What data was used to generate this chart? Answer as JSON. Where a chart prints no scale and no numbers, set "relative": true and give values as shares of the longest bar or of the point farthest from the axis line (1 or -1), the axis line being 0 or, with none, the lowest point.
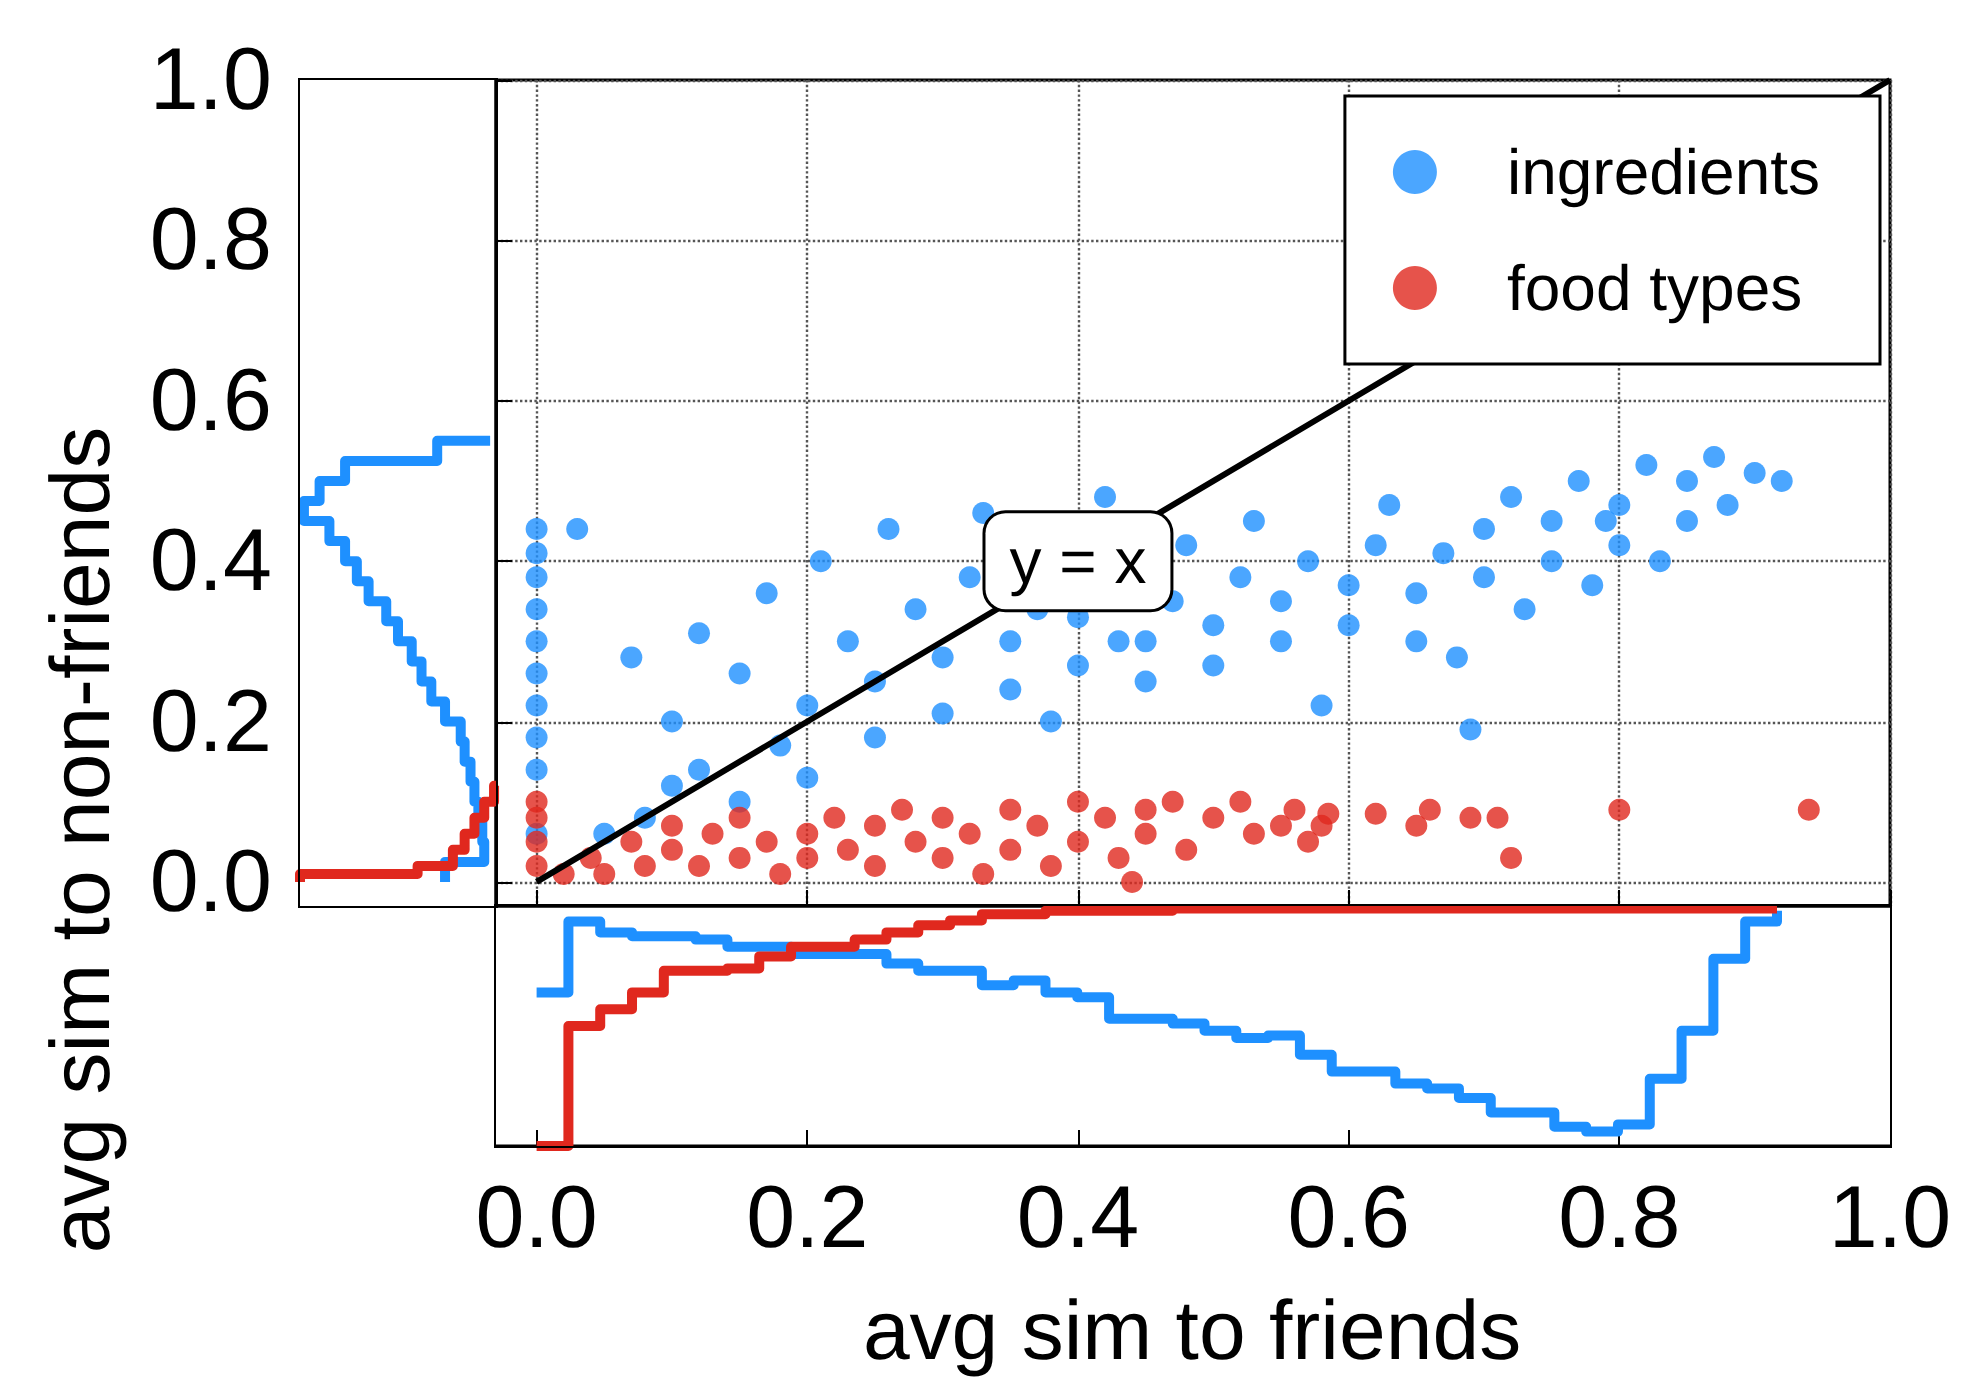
{
  "chart_data": [
    {
      "type": "scatter",
      "xlim": [
        -0.03,
        1.0
      ],
      "ylim": [
        -0.03,
        1.0
      ],
      "xticks": [
        0,
        0.2,
        0.4,
        0.6,
        0.8,
        1
      ],
      "yticks": [
        0,
        0.2,
        0.4,
        0.6,
        0.8,
        1
      ],
      "tick_labels": false,
      "grid": true,
      "legend": "top right",
      "marker": "circle",
      "series": [
        {
          "name": "ingredients",
          "color": "#1e90ff",
          "x": [
            0,
            0,
            0,
            0,
            0,
            0,
            0,
            0,
            0,
            0,
            0.03,
            0.05,
            0.08,
            0.07,
            0.1,
            0.1,
            0.12,
            0.12,
            0.15,
            0.15,
            0.17,
            0.18,
            0.2,
            0.2,
            0.21,
            0.23,
            0.25,
            0.25,
            0.26,
            0.28,
            0.3,
            0.3,
            0.32,
            0.33,
            0.35,
            0.35,
            0.37,
            0.38,
            0.4,
            0.4,
            0.42,
            0.43,
            0.45,
            0.45,
            0.47,
            0.48,
            0.5,
            0.5,
            0.52,
            0.53,
            0.55,
            0.55,
            0.57,
            0.58,
            0.6,
            0.6,
            0.62,
            0.63,
            0.65,
            0.65,
            0.67,
            0.68,
            0.69,
            0.7,
            0.7,
            0.72,
            0.73,
            0.75,
            0.75,
            0.77,
            0.78,
            0.79,
            0.8,
            0.8,
            0.82,
            0.83,
            0.85,
            0.85,
            0.87,
            0.88,
            0.9,
            0.92
          ],
          "values": [
            0.06,
            0.14,
            0.18,
            0.22,
            0.26,
            0.3,
            0.34,
            0.38,
            0.41,
            0.44,
            0.44,
            0.06,
            0.08,
            0.28,
            0.12,
            0.2,
            0.31,
            0.14,
            0.1,
            0.26,
            0.36,
            0.17,
            0.22,
            0.13,
            0.4,
            0.3,
            0.18,
            0.25,
            0.44,
            0.34,
            0.21,
            0.28,
            0.38,
            0.46,
            0.24,
            0.3,
            0.34,
            0.2,
            0.27,
            0.33,
            0.48,
            0.3,
            0.25,
            0.3,
            0.35,
            0.42,
            0.27,
            0.32,
            0.38,
            0.45,
            0.3,
            0.35,
            0.4,
            0.22,
            0.32,
            0.37,
            0.42,
            0.47,
            0.3,
            0.36,
            0.41,
            0.28,
            0.19,
            0.38,
            0.44,
            0.48,
            0.34,
            0.4,
            0.45,
            0.5,
            0.37,
            0.45,
            0.42,
            0.47,
            0.52,
            0.4,
            0.45,
            0.5,
            0.53,
            0.47,
            0.51,
            0.5
          ]
        },
        {
          "name": "food types",
          "color": "#e0281e",
          "x": [
            0,
            0,
            0,
            0,
            0.02,
            0.04,
            0.05,
            0.07,
            0.08,
            0.1,
            0.1,
            0.12,
            0.13,
            0.15,
            0.15,
            0.17,
            0.18,
            0.2,
            0.2,
            0.22,
            0.23,
            0.25,
            0.25,
            0.27,
            0.28,
            0.3,
            0.3,
            0.32,
            0.33,
            0.35,
            0.35,
            0.37,
            0.38,
            0.4,
            0.4,
            0.42,
            0.43,
            0.44,
            0.45,
            0.45,
            0.47,
            0.48,
            0.5,
            0.52,
            0.53,
            0.55,
            0.56,
            0.57,
            0.58,
            0.585,
            0.62,
            0.65,
            0.66,
            0.69,
            0.71,
            0.72,
            0.8,
            0.94
          ],
          "values": [
            0.02,
            0.05,
            0.08,
            0.1,
            0.01,
            0.03,
            0.01,
            0.05,
            0.02,
            0.04,
            0.07,
            0.02,
            0.06,
            0.03,
            0.08,
            0.05,
            0.01,
            0.06,
            0.03,
            0.08,
            0.04,
            0.02,
            0.07,
            0.09,
            0.05,
            0.03,
            0.08,
            0.06,
            0.01,
            0.09,
            0.04,
            0.07,
            0.02,
            0.1,
            0.05,
            0.08,
            0.03,
            0.0,
            0.09,
            0.06,
            0.1,
            0.04,
            0.08,
            0.1,
            0.06,
            0.07,
            0.09,
            0.05,
            0.07,
            0.085,
            0.085,
            0.07,
            0.09,
            0.08,
            0.08,
            0.03,
            0.09,
            0.09
          ]
        },
        {
          "type": "line",
          "color": "#000000",
          "marker": "none",
          "x": [
            0,
            1
          ],
          "values": [
            0,
            1
          ]
        }
      ],
      "annotations": [
        {
          "text": "y = x",
          "x": 0.4,
          "y": 0.4
        }
      ]
    },
    {
      "type": "step",
      "relative": true,
      "xlabel": "avg sim to friends",
      "xlim": [
        -0.03,
        1.0
      ],
      "tick_labels": "x",
      "xticks": [
        {
          "value": 0,
          "label": "0.0"
        },
        {
          "value": 0.2,
          "label": "0.2"
        },
        {
          "value": 0.4,
          "label": "0.4"
        },
        {
          "value": 0.6,
          "label": "0.6"
        },
        {
          "value": 0.8,
          "label": "0.8"
        },
        {
          "value": 1,
          "label": "1.0"
        }
      ],
      "x": [
        0,
        0.0235,
        0.047,
        0.0705,
        0.094,
        0.1175,
        0.141,
        0.1645,
        0.188,
        0.2115,
        0.235,
        0.2585,
        0.282,
        0.3055,
        0.329,
        0.3525,
        0.376,
        0.3995,
        0.423,
        0.4465,
        0.47,
        0.4935,
        0.517,
        0.5405,
        0.564,
        0.5875,
        0.611,
        0.6345,
        0.658,
        0.6815,
        0.705,
        0.7285,
        0.752,
        0.7755,
        0.799,
        0.8225,
        0.846,
        0.8695,
        0.893,
        0.9165
      ],
      "series": [
        {
          "color": "#1e90ff",
          "values": [
            -0.36,
            -0.065,
            -0.11,
            -0.126,
            -0.126,
            -0.14,
            -0.17,
            -0.17,
            -0.2,
            -0.2,
            -0.2,
            -0.24,
            -0.27,
            -0.27,
            -0.33,
            -0.31,
            -0.36,
            -0.38,
            -0.47,
            -0.47,
            -0.49,
            -0.52,
            -0.55,
            -0.54,
            -0.62,
            -0.69,
            -0.69,
            -0.74,
            -0.76,
            -0.8,
            -0.86,
            -0.86,
            -0.92,
            -0.94,
            -0.91,
            -0.72,
            -0.52,
            -0.22,
            -0.065,
            -0.02
          ]
        },
        {
          "color": "#e0281e",
          "values": [
            -1.0,
            -0.5,
            -0.43,
            -0.36,
            -0.27,
            -0.27,
            -0.26,
            -0.21,
            -0.17,
            -0.17,
            -0.14,
            -0.11,
            -0.08,
            -0.06,
            -0.034,
            -0.034,
            -0.02,
            -0.02,
            -0.02,
            -0.02,
            -0.01,
            -0.01,
            -0.01,
            -0.01,
            -0.01,
            -0.01,
            -0.01,
            -0.01,
            -0.01,
            -0.01,
            -0.01,
            -0.01,
            -0.01,
            -0.01,
            -0.01,
            -0.01,
            -0.01,
            -0.01,
            -0.01,
            -0.01
          ]
        }
      ]
    },
    {
      "type": "step",
      "orientation": "horizontal",
      "relative": true,
      "ylabel": "avg sim to non-friends",
      "ylim": [
        -0.03,
        1.0
      ],
      "tick_labels": "y",
      "yticks": [
        {
          "value": 0,
          "label": "0.0"
        },
        {
          "value": 0.2,
          "label": "0.2"
        },
        {
          "value": 0.4,
          "label": "0.4"
        },
        {
          "value": 0.6,
          "label": "0.6"
        },
        {
          "value": 0.8,
          "label": "0.8"
        },
        {
          "value": 1,
          "label": "1.0"
        }
      ],
      "series": [
        {
          "color": "#1e90ff",
          "x": [
            0,
            0.025,
            0.05,
            0.075,
            0.1,
            0.125,
            0.15,
            0.175,
            0.2,
            0.225,
            0.25,
            0.275,
            0.3,
            0.325,
            0.35,
            0.375,
            0.4,
            0.425,
            0.45,
            0.475,
            0.5,
            0.525,
            0.55
          ],
          "values": [
            -0.26,
            -0.06,
            -0.07,
            -0.09,
            -0.11,
            -0.13,
            -0.16,
            -0.18,
            -0.26,
            -0.33,
            -0.38,
            -0.43,
            -0.5,
            -0.56,
            -0.65,
            -0.71,
            -0.77,
            -0.85,
            -0.98,
            -0.9,
            -0.77,
            -0.3,
            -0.03
          ]
        },
        {
          "color": "#e0281e",
          "x": [
            0,
            0.01,
            0.02,
            0.04,
            0.06,
            0.08,
            0.1,
            0.12
          ],
          "values": [
            -1.0,
            -0.4,
            -0.22,
            -0.16,
            -0.11,
            -0.06,
            -0.01,
            0.0
          ]
        }
      ]
    }
  ]
}
